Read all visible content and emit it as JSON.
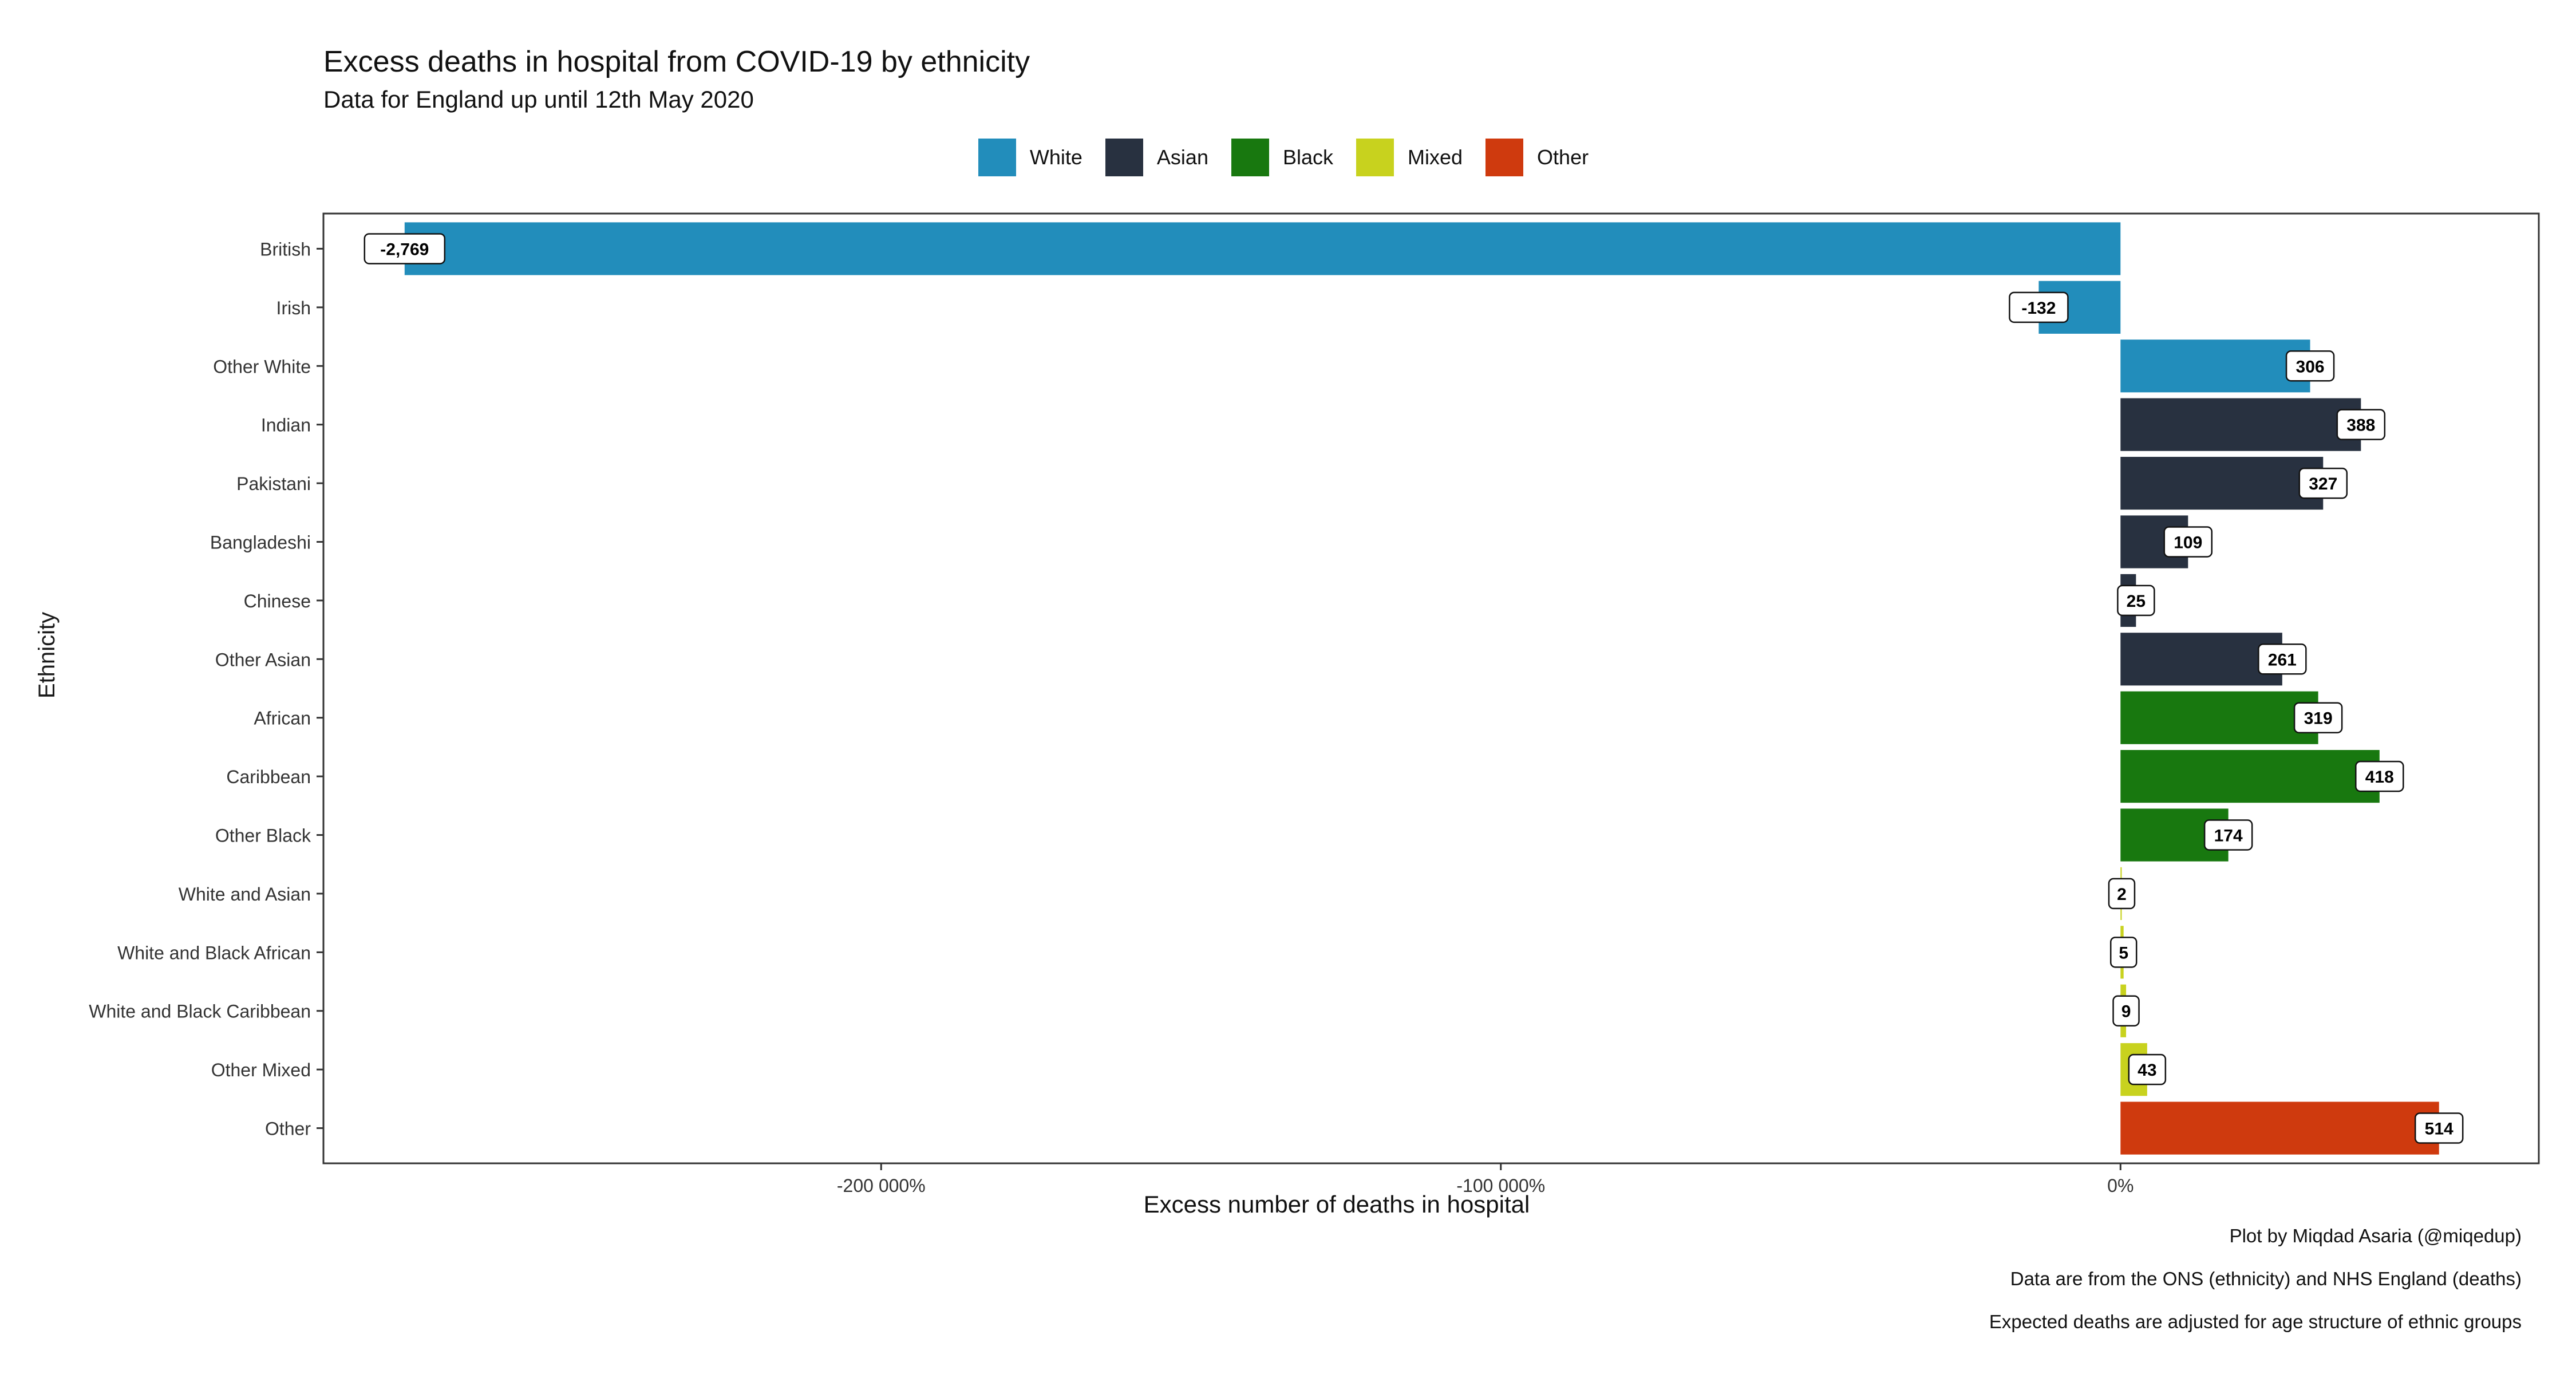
{
  "title": "Excess deaths in hospital from COVID-19 by ethnicity",
  "subtitle": "Data for England up until 12th May 2020",
  "legend": [
    {
      "label": "White",
      "color": "#228DBB"
    },
    {
      "label": "Asian",
      "color": "#283140"
    },
    {
      "label": "Black",
      "color": "#18780F"
    },
    {
      "label": "Mixed",
      "color": "#C8D21E"
    },
    {
      "label": "Other",
      "color": "#CF3A0E"
    }
  ],
  "captions": [
    "Plot by Miqdad Asaria (@miqedup)",
    "Data are from the ONS (ethnicity) and NHS England (deaths)",
    "Expected deaths are adjusted for age structure of ethnic groups"
  ],
  "chart_data": {
    "type": "bar",
    "orientation": "horizontal",
    "xlabel": "Excess number of deaths in hospital",
    "ylabel": "Ethnicity",
    "xlim": [
      -2900,
      675
    ],
    "x_ticks": [
      {
        "value": -2000,
        "label": "-200 000%"
      },
      {
        "value": -1000,
        "label": "-100 000%"
      },
      {
        "value": 0,
        "label": "0%"
      }
    ],
    "grid": false,
    "legend_position": "top",
    "bars": [
      {
        "category": "British",
        "group": "White",
        "value": -2769,
        "label": "-2,769"
      },
      {
        "category": "Irish",
        "group": "White",
        "value": -132,
        "label": "-132"
      },
      {
        "category": "Other White",
        "group": "White",
        "value": 306,
        "label": "306"
      },
      {
        "category": "Indian",
        "group": "Asian",
        "value": 388,
        "label": "388"
      },
      {
        "category": "Pakistani",
        "group": "Asian",
        "value": 327,
        "label": "327"
      },
      {
        "category": "Bangladeshi",
        "group": "Asian",
        "value": 109,
        "label": "109"
      },
      {
        "category": "Chinese",
        "group": "Asian",
        "value": 25,
        "label": "25"
      },
      {
        "category": "Other Asian",
        "group": "Asian",
        "value": 261,
        "label": "261"
      },
      {
        "category": "African",
        "group": "Black",
        "value": 319,
        "label": "319"
      },
      {
        "category": "Caribbean",
        "group": "Black",
        "value": 418,
        "label": "418"
      },
      {
        "category": "Other Black",
        "group": "Black",
        "value": 174,
        "label": "174"
      },
      {
        "category": "White and Asian",
        "group": "Mixed",
        "value": 2,
        "label": "2"
      },
      {
        "category": "White and Black African",
        "group": "Mixed",
        "value": 5,
        "label": "5"
      },
      {
        "category": "White and Black Caribbean",
        "group": "Mixed",
        "value": 9,
        "label": "9"
      },
      {
        "category": "Other Mixed",
        "group": "Mixed",
        "value": 43,
        "label": "43"
      },
      {
        "category": "Other",
        "group": "Other",
        "value": 514,
        "label": "514"
      }
    ]
  }
}
